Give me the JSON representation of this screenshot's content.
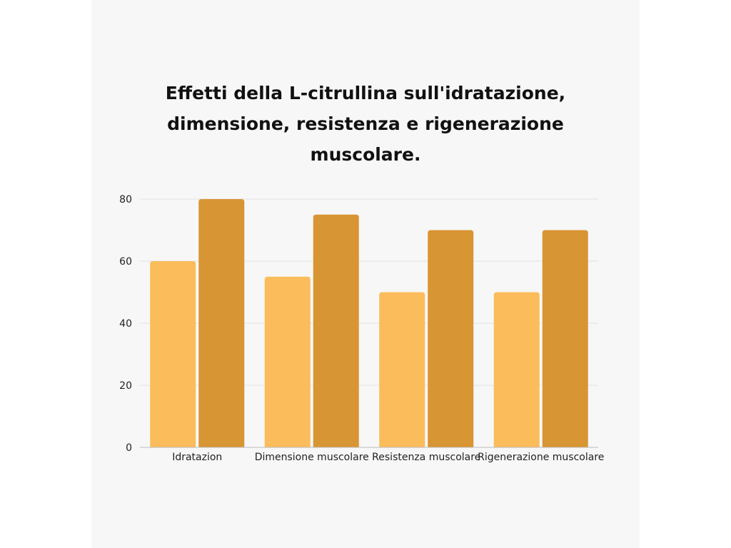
{
  "chart_data": {
    "type": "bar",
    "title": "Effetti della L-citrullina sull'idratazione,\ndimensione, resistenza e rigenerazione\nmuscolare.",
    "xlabel": "",
    "ylabel": "",
    "categories": [
      "Idratazion",
      "Dimensione muscolare",
      "Resistenza muscolare",
      "Rigenerazione muscolare"
    ],
    "series": [
      {
        "values": [
          60,
          55,
          50,
          50
        ],
        "color": "#FBBC5B"
      },
      {
        "values": [
          80,
          75,
          70,
          70
        ],
        "color": "#D89533"
      }
    ],
    "ylim": [
      0,
      80
    ],
    "yticks": [
      0,
      20,
      40,
      60,
      80
    ],
    "grid": true,
    "legend": "none"
  }
}
